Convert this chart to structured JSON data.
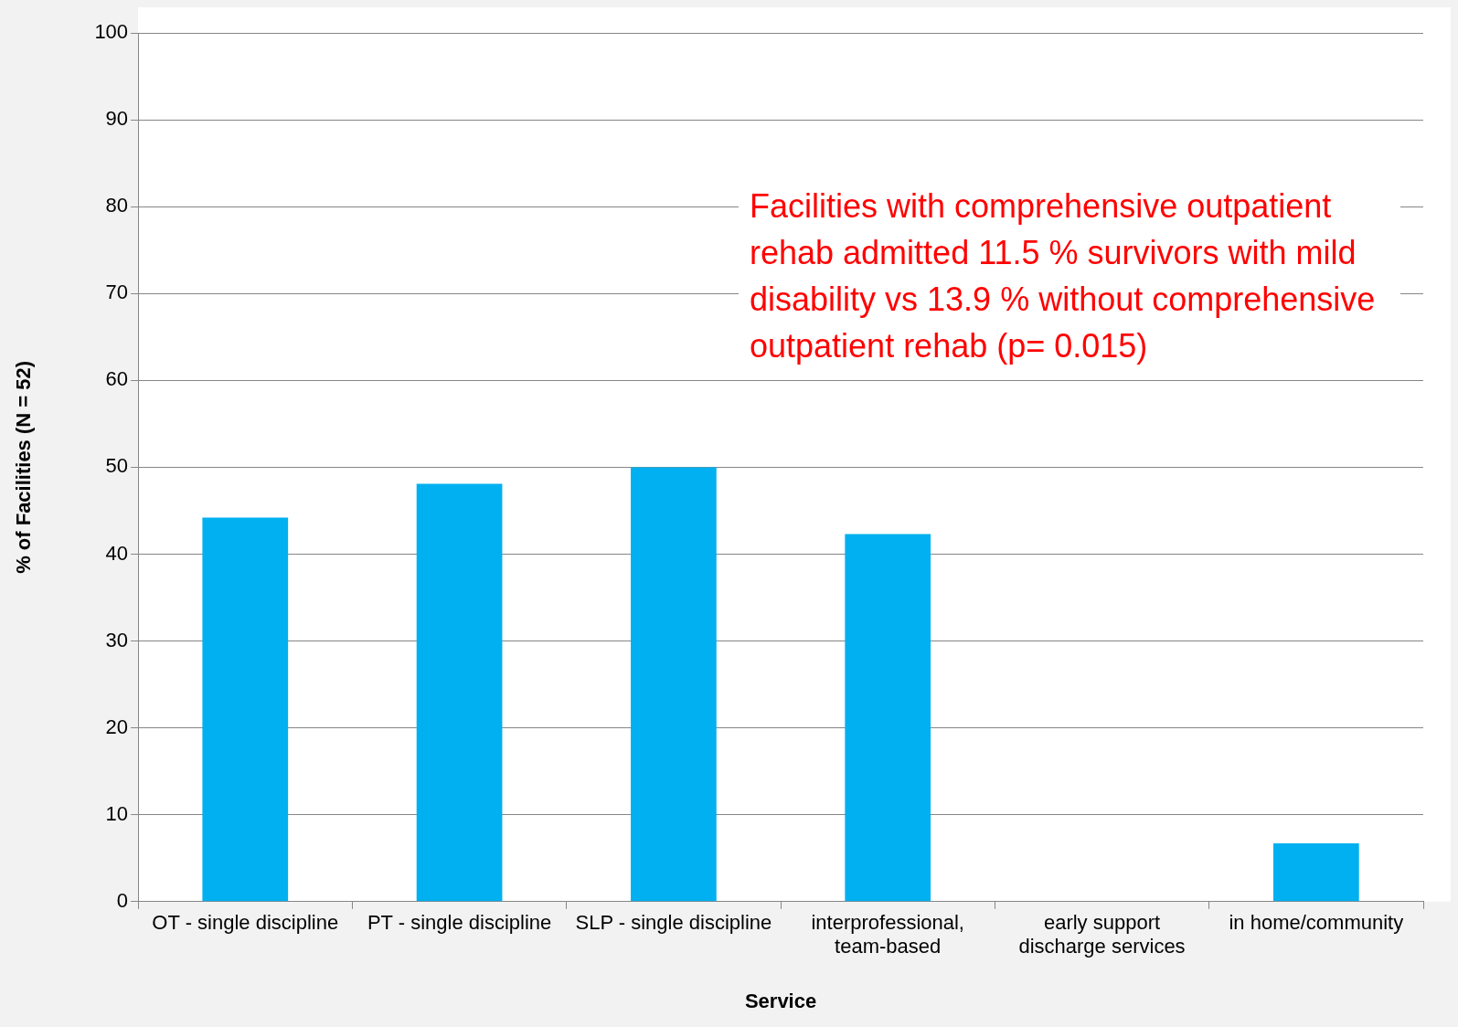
{
  "chart_data": {
    "type": "bar",
    "xlabel": "Service",
    "ylabel": "% of Facilities (N = 52)",
    "categories": [
      "OT - single discipline",
      "PT - single discipline",
      "SLP - single discipline",
      "interprofessional, team-based",
      "early support discharge services",
      "in home/community"
    ],
    "values": [
      44.2,
      48.1,
      50,
      42.3,
      0,
      6.7
    ],
    "color": "#00b0f0",
    "ylim": [
      0,
      100
    ],
    "yticks": [
      0,
      10,
      20,
      30,
      40,
      50,
      60,
      70,
      80,
      90,
      100
    ],
    "grid": "y",
    "annotations": [
      "Facilities with comprehensive outpatient rehab admitted 11.5 % survivors with mild disability vs 13.9 %  without comprehensive outpatient rehab (p= 0.015)"
    ]
  }
}
